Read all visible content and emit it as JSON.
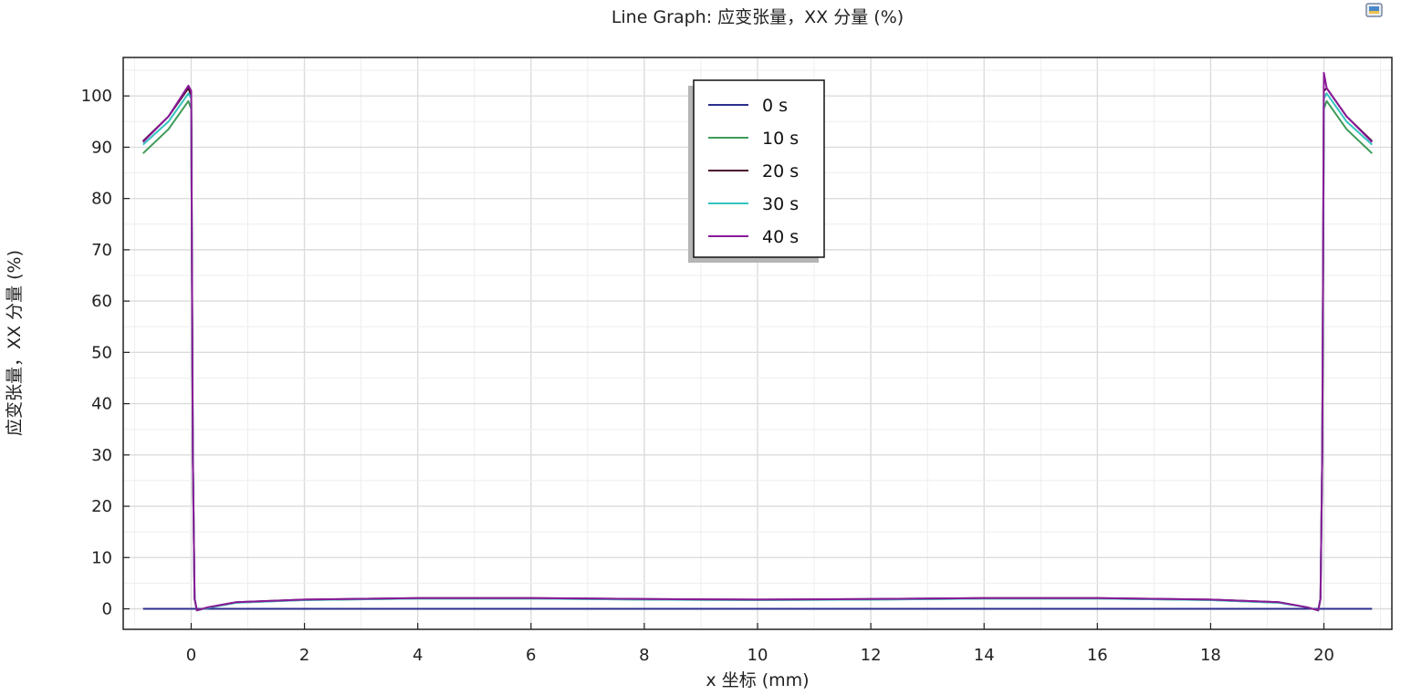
{
  "chart_data": {
    "type": "line",
    "title": "Line Graph: 应变张量，XX 分量 (%)",
    "xlabel": "x 坐标 (mm)",
    "ylabel": "应变张量，XX 分量 (%)",
    "xlim": [
      -1.2,
      21.2
    ],
    "ylim": [
      -4,
      107.5
    ],
    "x_ticks": [
      0,
      2,
      4,
      6,
      8,
      10,
      12,
      14,
      16,
      18,
      20
    ],
    "y_ticks": [
      0,
      10,
      20,
      30,
      40,
      50,
      60,
      70,
      80,
      90,
      100
    ],
    "grid": true,
    "legend_position": "top-center",
    "series": [
      {
        "name": "0 s",
        "color": "#2b2f8c",
        "points": [
          [
            -0.85,
            0
          ],
          [
            0.0,
            0
          ],
          [
            10.0,
            0
          ],
          [
            20.0,
            0
          ],
          [
            20.85,
            0
          ]
        ]
      },
      {
        "name": "10 s",
        "color": "#3f9a58",
        "points": [
          [
            -0.85,
            88.8
          ],
          [
            -0.4,
            93.5
          ],
          [
            -0.05,
            99.0
          ],
          [
            0.0,
            97.5
          ],
          [
            0.03,
            30.0
          ],
          [
            0.06,
            2.0
          ],
          [
            0.1,
            -0.3
          ],
          [
            0.3,
            0.2
          ],
          [
            0.8,
            1.2
          ],
          [
            2.0,
            1.7
          ],
          [
            4.0,
            2.0
          ],
          [
            6.0,
            2.0
          ],
          [
            8.0,
            1.8
          ],
          [
            10.0,
            1.7
          ],
          [
            12.0,
            1.8
          ],
          [
            14.0,
            2.0
          ],
          [
            16.0,
            2.0
          ],
          [
            18.0,
            1.7
          ],
          [
            19.2,
            1.2
          ],
          [
            19.7,
            0.3
          ],
          [
            19.9,
            -0.3
          ],
          [
            19.94,
            2.0
          ],
          [
            19.97,
            30.0
          ],
          [
            20.0,
            97.5
          ],
          [
            20.05,
            99.0
          ],
          [
            20.4,
            93.5
          ],
          [
            20.85,
            88.8
          ]
        ]
      },
      {
        "name": "20 s",
        "color": "#4a1030",
        "points": [
          [
            -0.85,
            91.2
          ],
          [
            -0.4,
            96.0
          ],
          [
            -0.05,
            101.5
          ],
          [
            0.0,
            100.0
          ],
          [
            0.03,
            30.0
          ],
          [
            0.06,
            2.0
          ],
          [
            0.1,
            -0.3
          ],
          [
            0.3,
            0.3
          ],
          [
            0.8,
            1.3
          ],
          [
            2.0,
            1.8
          ],
          [
            4.0,
            2.1
          ],
          [
            6.0,
            2.1
          ],
          [
            8.0,
            1.9
          ],
          [
            10.0,
            1.8
          ],
          [
            12.0,
            1.9
          ],
          [
            14.0,
            2.1
          ],
          [
            16.0,
            2.1
          ],
          [
            18.0,
            1.8
          ],
          [
            19.2,
            1.3
          ],
          [
            19.7,
            0.3
          ],
          [
            19.9,
            -0.3
          ],
          [
            19.94,
            2.0
          ],
          [
            19.97,
            30.0
          ],
          [
            20.0,
            101.0
          ],
          [
            20.05,
            101.5
          ],
          [
            20.4,
            96.0
          ],
          [
            20.85,
            91.2
          ]
        ]
      },
      {
        "name": "30 s",
        "color": "#33c4c0",
        "points": [
          [
            -0.85,
            90.5
          ],
          [
            -0.4,
            95.0
          ],
          [
            -0.05,
            100.5
          ],
          [
            0.0,
            99.5
          ],
          [
            0.03,
            30.0
          ],
          [
            0.06,
            2.0
          ],
          [
            0.1,
            -0.3
          ],
          [
            0.3,
            0.2
          ],
          [
            0.8,
            1.2
          ],
          [
            2.0,
            1.7
          ],
          [
            4.0,
            2.0
          ],
          [
            6.0,
            2.0
          ],
          [
            8.0,
            1.8
          ],
          [
            10.0,
            1.7
          ],
          [
            12.0,
            1.8
          ],
          [
            14.0,
            2.0
          ],
          [
            16.0,
            2.0
          ],
          [
            18.0,
            1.7
          ],
          [
            19.2,
            1.2
          ],
          [
            19.7,
            0.3
          ],
          [
            19.9,
            -0.3
          ],
          [
            19.94,
            2.0
          ],
          [
            19.97,
            30.0
          ],
          [
            20.0,
            99.5
          ],
          [
            20.05,
            100.5
          ],
          [
            20.4,
            95.0
          ],
          [
            20.85,
            90.5
          ]
        ]
      },
      {
        "name": "40 s",
        "color": "#8a1a98",
        "points": [
          [
            -0.85,
            91.0
          ],
          [
            -0.4,
            96.0
          ],
          [
            -0.05,
            102.0
          ],
          [
            0.0,
            101.0
          ],
          [
            0.03,
            30.0
          ],
          [
            0.06,
            2.0
          ],
          [
            0.1,
            -0.3
          ],
          [
            0.3,
            0.3
          ],
          [
            0.8,
            1.3
          ],
          [
            2.0,
            1.8
          ],
          [
            4.0,
            2.1
          ],
          [
            6.0,
            2.1
          ],
          [
            8.0,
            1.9
          ],
          [
            10.0,
            1.8
          ],
          [
            12.0,
            1.9
          ],
          [
            14.0,
            2.1
          ],
          [
            16.0,
            2.1
          ],
          [
            18.0,
            1.8
          ],
          [
            19.2,
            1.3
          ],
          [
            19.7,
            0.3
          ],
          [
            19.9,
            -0.3
          ],
          [
            19.94,
            2.0
          ],
          [
            19.97,
            30.0
          ],
          [
            20.0,
            104.5
          ],
          [
            20.05,
            101.5
          ],
          [
            20.4,
            96.0
          ],
          [
            20.85,
            91.0
          ]
        ]
      }
    ]
  },
  "toolbar": {
    "export_icon": "image-export-icon"
  }
}
